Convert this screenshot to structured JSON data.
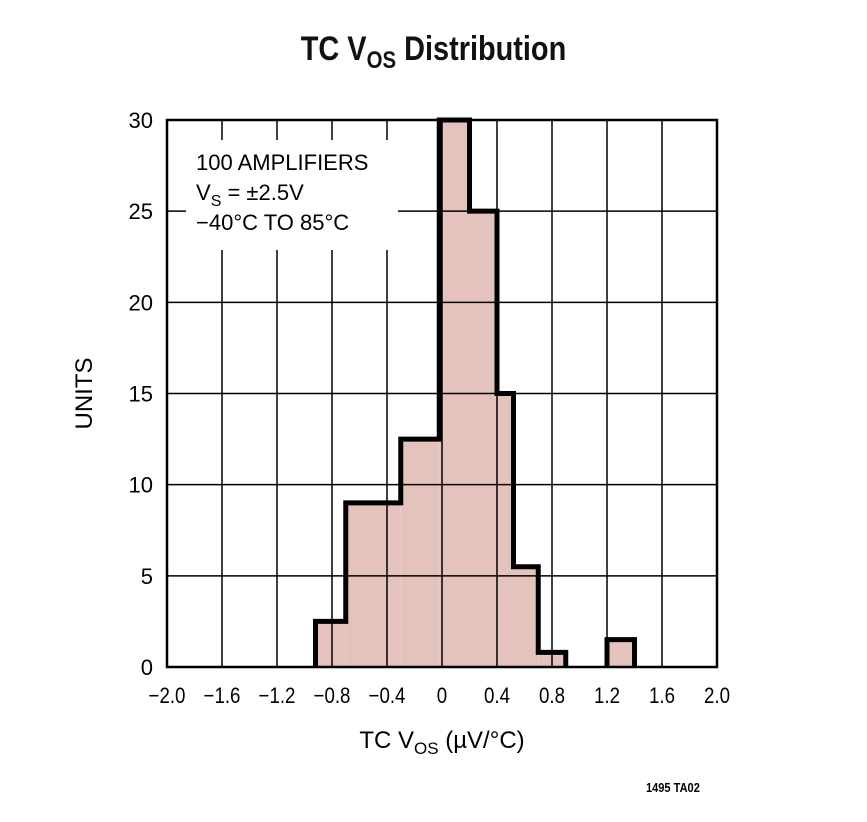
{
  "chart_data": {
    "type": "bar",
    "title": {
      "main": "TC V",
      "sub": "OS",
      "rest": " Distribution"
    },
    "xlabel": {
      "main": "TC V",
      "sub": "OS",
      "rest": " (µV/°C)"
    },
    "ylabel": "UNITS",
    "xlim": [
      -2.0,
      2.0
    ],
    "ylim": [
      0,
      30
    ],
    "grid": true,
    "xticks": [
      "−2.0",
      "−1.6",
      "−1.2",
      "−0.8",
      "−0.4",
      "0",
      "0.4",
      "0.8",
      "1.2",
      "1.6",
      "2.0"
    ],
    "yticks": [
      "0",
      "5",
      "10",
      "15",
      "20",
      "25",
      "30"
    ],
    "bins": [
      {
        "from": -0.92,
        "to": -0.7,
        "value": 2.5
      },
      {
        "from": -0.7,
        "to": -0.3,
        "value": 9
      },
      {
        "from": -0.3,
        "to": -0.02,
        "value": 12.5
      },
      {
        "from": -0.02,
        "to": 0.2,
        "value": 30
      },
      {
        "from": 0.2,
        "to": 0.4,
        "value": 25
      },
      {
        "from": 0.4,
        "to": 0.52,
        "value": 15
      },
      {
        "from": 0.52,
        "to": 0.7,
        "value": 5.5
      },
      {
        "from": 0.7,
        "to": 0.9,
        "value": 0.8
      },
      {
        "from": 1.2,
        "to": 1.4,
        "value": 1.5
      }
    ],
    "annotation": [
      "100 AMPLIFIERS",
      {
        "main": "V",
        "sub": "S",
        "rest": " = ±2.5V"
      },
      "−40°C TO 85°C"
    ],
    "fill_color": "#e5c3bd",
    "edge_color": "#000000"
  },
  "footer": "1495 TA02"
}
